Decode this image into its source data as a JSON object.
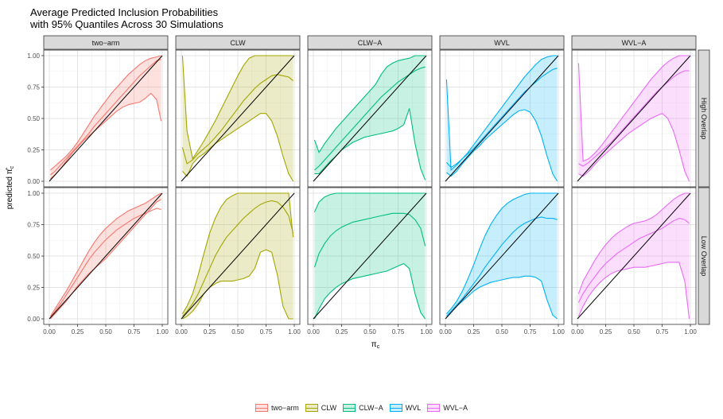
{
  "title_lines": [
    "Average Predicted Inclusion Probabilities",
    "with 95% Quantiles Across 30 Simulations"
  ],
  "chart_data": {
    "type": "area",
    "xlabel_base": "π",
    "xlabel_sub": "c",
    "ylabel_prefix": "predicted",
    "ylabel_base": "π̂",
    "ylabel_sub": "c",
    "xlim": [
      0,
      1
    ],
    "ylim": [
      0,
      1
    ],
    "x_ticks": [
      "0.00",
      "0.25",
      "0.50",
      "0.75",
      "1.00"
    ],
    "y_ticks": [
      "0.00",
      "0.25",
      "0.50",
      "0.75",
      "1.00"
    ],
    "grid": true,
    "legend_position": "bottom",
    "columns": [
      "two−arm",
      "CLW",
      "CLW−A",
      "WVL",
      "WVL−A"
    ],
    "rows": [
      "High Overlap",
      "Low Overlap"
    ],
    "colors": {
      "two−arm": "#F8766D",
      "CLW": "#A3A500",
      "CLW−A": "#00BF7D",
      "WVL": "#00B0F6",
      "WVL−A": "#E76BF3"
    },
    "reference_line": {
      "x": [
        0,
        1
      ],
      "y": [
        0,
        1
      ],
      "color": "#000000"
    },
    "x": [
      0.01,
      0.05,
      0.1,
      0.15,
      0.2,
      0.25,
      0.3,
      0.35,
      0.4,
      0.45,
      0.5,
      0.55,
      0.6,
      0.65,
      0.7,
      0.75,
      0.8,
      0.85,
      0.9,
      0.95,
      0.99
    ],
    "panels": [
      {
        "row": "High Overlap",
        "column": "two−arm",
        "upper": [
          0.09,
          0.12,
          0.16,
          0.2,
          0.25,
          0.31,
          0.38,
          0.45,
          0.52,
          0.58,
          0.64,
          0.7,
          0.75,
          0.8,
          0.85,
          0.89,
          0.93,
          0.96,
          0.98,
          0.99,
          1.0
        ],
        "mean": [
          0.05,
          0.08,
          0.13,
          0.18,
          0.23,
          0.28,
          0.33,
          0.38,
          0.44,
          0.49,
          0.54,
          0.59,
          0.64,
          0.69,
          0.74,
          0.79,
          0.84,
          0.88,
          0.92,
          0.96,
          0.97
        ],
        "lower": [
          0.02,
          0.05,
          0.1,
          0.16,
          0.22,
          0.27,
          0.32,
          0.36,
          0.4,
          0.44,
          0.48,
          0.52,
          0.56,
          0.59,
          0.61,
          0.62,
          0.63,
          0.66,
          0.7,
          0.65,
          0.48
        ]
      },
      {
        "row": "High Overlap",
        "column": "CLW",
        "upper": [
          1.0,
          0.4,
          0.18,
          0.25,
          0.32,
          0.4,
          0.48,
          0.57,
          0.66,
          0.75,
          0.84,
          0.92,
          0.98,
          1.0,
          1.0,
          1.0,
          1.0,
          1.0,
          1.0,
          1.0,
          1.0
        ],
        "mean": [
          0.27,
          0.14,
          0.17,
          0.22,
          0.26,
          0.3,
          0.35,
          0.4,
          0.46,
          0.52,
          0.58,
          0.64,
          0.69,
          0.74,
          0.78,
          0.81,
          0.84,
          0.85,
          0.84,
          0.83,
          0.8
        ],
        "lower": [
          0.08,
          0.04,
          0.14,
          0.19,
          0.22,
          0.26,
          0.3,
          0.33,
          0.36,
          0.39,
          0.42,
          0.45,
          0.48,
          0.51,
          0.54,
          0.54,
          0.48,
          0.36,
          0.2,
          0.06,
          0.0
        ]
      },
      {
        "row": "High Overlap",
        "column": "CLW−A",
        "upper": [
          0.33,
          0.23,
          0.3,
          0.36,
          0.42,
          0.47,
          0.52,
          0.57,
          0.62,
          0.67,
          0.72,
          0.77,
          0.85,
          0.91,
          0.94,
          0.96,
          0.97,
          0.98,
          1.0,
          1.0,
          1.0
        ],
        "mean": [
          0.09,
          0.12,
          0.17,
          0.22,
          0.27,
          0.32,
          0.37,
          0.42,
          0.47,
          0.52,
          0.57,
          0.62,
          0.67,
          0.71,
          0.75,
          0.79,
          0.82,
          0.85,
          0.88,
          0.9,
          0.91
        ],
        "lower": [
          0.06,
          0.06,
          0.11,
          0.16,
          0.2,
          0.25,
          0.28,
          0.31,
          0.33,
          0.35,
          0.36,
          0.37,
          0.38,
          0.39,
          0.4,
          0.42,
          0.45,
          0.58,
          0.3,
          0.1,
          0.01
        ]
      },
      {
        "row": "High Overlap",
        "column": "WVL",
        "upper": [
          0.81,
          0.09,
          0.13,
          0.18,
          0.23,
          0.29,
          0.35,
          0.41,
          0.47,
          0.53,
          0.59,
          0.65,
          0.71,
          0.77,
          0.83,
          0.88,
          0.93,
          0.97,
          0.99,
          1.0,
          1.0
        ],
        "mean": [
          0.15,
          0.11,
          0.14,
          0.18,
          0.22,
          0.26,
          0.31,
          0.36,
          0.41,
          0.46,
          0.51,
          0.56,
          0.61,
          0.66,
          0.71,
          0.75,
          0.79,
          0.83,
          0.86,
          0.89,
          0.9
        ],
        "lower": [
          0.07,
          0.04,
          0.08,
          0.14,
          0.19,
          0.24,
          0.28,
          0.33,
          0.37,
          0.41,
          0.45,
          0.49,
          0.53,
          0.56,
          0.57,
          0.55,
          0.48,
          0.36,
          0.2,
          0.06,
          0.0
        ]
      },
      {
        "row": "High Overlap",
        "column": "WVL−A",
        "upper": [
          0.94,
          0.16,
          0.18,
          0.22,
          0.27,
          0.33,
          0.39,
          0.45,
          0.51,
          0.57,
          0.63,
          0.69,
          0.75,
          0.81,
          0.86,
          0.91,
          0.95,
          0.98,
          1.0,
          1.0,
          1.0
        ],
        "mean": [
          0.14,
          0.12,
          0.15,
          0.19,
          0.23,
          0.27,
          0.31,
          0.36,
          0.41,
          0.46,
          0.51,
          0.56,
          0.61,
          0.66,
          0.71,
          0.75,
          0.79,
          0.83,
          0.86,
          0.88,
          0.88
        ],
        "lower": [
          0.06,
          0.04,
          0.08,
          0.13,
          0.18,
          0.22,
          0.26,
          0.3,
          0.34,
          0.38,
          0.41,
          0.44,
          0.47,
          0.5,
          0.52,
          0.54,
          0.5,
          0.4,
          0.25,
          0.08,
          0.0
        ]
      },
      {
        "row": "Low Overlap",
        "column": "two−arm",
        "upper": [
          0.02,
          0.08,
          0.15,
          0.22,
          0.3,
          0.38,
          0.46,
          0.54,
          0.61,
          0.67,
          0.72,
          0.76,
          0.8,
          0.83,
          0.86,
          0.88,
          0.9,
          0.92,
          0.95,
          0.98,
          1.0
        ],
        "mean": [
          0.01,
          0.06,
          0.12,
          0.19,
          0.26,
          0.33,
          0.4,
          0.47,
          0.53,
          0.58,
          0.63,
          0.67,
          0.71,
          0.74,
          0.77,
          0.8,
          0.82,
          0.84,
          0.86,
          0.88,
          0.87
        ],
        "lower": [
          0.0,
          0.04,
          0.09,
          0.14,
          0.2,
          0.26,
          0.31,
          0.36,
          0.4,
          0.44,
          0.48,
          0.53,
          0.58,
          0.63,
          0.68,
          0.73,
          0.78,
          0.83,
          0.88,
          0.93,
          0.95
        ]
      },
      {
        "row": "Low Overlap",
        "column": "CLW",
        "upper": [
          0.04,
          0.1,
          0.2,
          0.35,
          0.52,
          0.68,
          0.8,
          0.89,
          0.95,
          0.98,
          1.0,
          1.0,
          1.0,
          1.0,
          1.0,
          1.0,
          1.0,
          1.0,
          1.0,
          1.0,
          0.65
        ],
        "mean": [
          0.02,
          0.06,
          0.12,
          0.2,
          0.3,
          0.4,
          0.5,
          0.58,
          0.65,
          0.7,
          0.75,
          0.8,
          0.84,
          0.88,
          0.91,
          0.93,
          0.94,
          0.93,
          0.89,
          0.82,
          0.68
        ],
        "lower": [
          0.0,
          0.02,
          0.06,
          0.12,
          0.2,
          0.25,
          0.28,
          0.3,
          0.3,
          0.3,
          0.31,
          0.32,
          0.34,
          0.4,
          0.53,
          0.55,
          0.53,
          0.35,
          0.1,
          0.0,
          0.0
        ]
      },
      {
        "row": "Low Overlap",
        "column": "CLW−A",
        "upper": [
          0.85,
          0.93,
          0.97,
          0.99,
          1.0,
          1.0,
          1.0,
          1.0,
          1.0,
          1.0,
          1.0,
          1.0,
          1.0,
          1.0,
          1.0,
          1.0,
          1.0,
          1.0,
          1.0,
          1.0,
          1.0
        ],
        "mean": [
          0.41,
          0.52,
          0.6,
          0.66,
          0.7,
          0.73,
          0.75,
          0.77,
          0.78,
          0.79,
          0.8,
          0.81,
          0.82,
          0.83,
          0.84,
          0.84,
          0.84,
          0.83,
          0.79,
          0.72,
          0.58
        ],
        "lower": [
          0.0,
          0.08,
          0.16,
          0.21,
          0.25,
          0.28,
          0.3,
          0.32,
          0.33,
          0.34,
          0.35,
          0.36,
          0.37,
          0.38,
          0.4,
          0.42,
          0.44,
          0.4,
          0.2,
          0.05,
          0.0
        ]
      },
      {
        "row": "Low Overlap",
        "column": "WVL",
        "upper": [
          0.04,
          0.08,
          0.14,
          0.22,
          0.32,
          0.43,
          0.55,
          0.66,
          0.75,
          0.82,
          0.88,
          0.92,
          0.95,
          0.97,
          0.99,
          1.0,
          1.0,
          1.0,
          1.0,
          1.0,
          1.0
        ],
        "mean": [
          0.02,
          0.06,
          0.11,
          0.16,
          0.22,
          0.28,
          0.34,
          0.41,
          0.47,
          0.53,
          0.59,
          0.64,
          0.69,
          0.73,
          0.76,
          0.78,
          0.8,
          0.81,
          0.8,
          0.8,
          0.79
        ],
        "lower": [
          0.01,
          0.05,
          0.1,
          0.14,
          0.18,
          0.22,
          0.25,
          0.27,
          0.29,
          0.3,
          0.31,
          0.32,
          0.33,
          0.33,
          0.34,
          0.34,
          0.33,
          0.3,
          0.15,
          0.03,
          0.0
        ]
      },
      {
        "row": "Low Overlap",
        "column": "WVL−A",
        "upper": [
          0.2,
          0.3,
          0.38,
          0.46,
          0.53,
          0.59,
          0.64,
          0.68,
          0.71,
          0.74,
          0.76,
          0.77,
          0.78,
          0.8,
          0.83,
          0.87,
          0.91,
          0.95,
          0.98,
          1.0,
          1.0
        ],
        "mean": [
          0.13,
          0.2,
          0.27,
          0.33,
          0.39,
          0.44,
          0.48,
          0.52,
          0.55,
          0.58,
          0.61,
          0.64,
          0.66,
          0.68,
          0.7,
          0.72,
          0.75,
          0.78,
          0.8,
          0.79,
          0.76
        ],
        "lower": [
          0.02,
          0.1,
          0.18,
          0.24,
          0.29,
          0.33,
          0.36,
          0.38,
          0.39,
          0.4,
          0.41,
          0.41,
          0.41,
          0.42,
          0.43,
          0.44,
          0.45,
          0.45,
          0.45,
          0.3,
          0.0
        ]
      }
    ]
  }
}
